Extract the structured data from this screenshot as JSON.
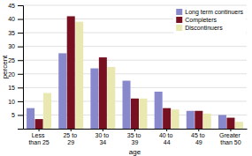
{
  "chart_data": {
    "type": "bar",
    "xlabel": "age",
    "ylabel": "percent",
    "categories": [
      "Less\nthan 25",
      "25 to\n29",
      "30 to\n34",
      "35 to\n39",
      "40 to\n44",
      "45 to\n49",
      "Greater\nthan 50"
    ],
    "series": [
      {
        "name": "Long term continuers",
        "color": "#8888cc",
        "values": [
          7.5,
          27.5,
          22,
          17.5,
          13.5,
          6.5,
          5
        ]
      },
      {
        "name": "Completers",
        "color": "#771122",
        "values": [
          3.5,
          41,
          26,
          11,
          7.5,
          6.5,
          4
        ]
      },
      {
        "name": "Discontinuers",
        "color": "#e8e8b0",
        "values": [
          13,
          39,
          22.5,
          11,
          7,
          5.5,
          2.5
        ]
      }
    ],
    "ylim": [
      0,
      45
    ],
    "yticks": [
      5,
      10,
      15,
      20,
      25,
      30,
      35,
      40,
      45
    ],
    "grid": true,
    "legend": "upper right"
  }
}
